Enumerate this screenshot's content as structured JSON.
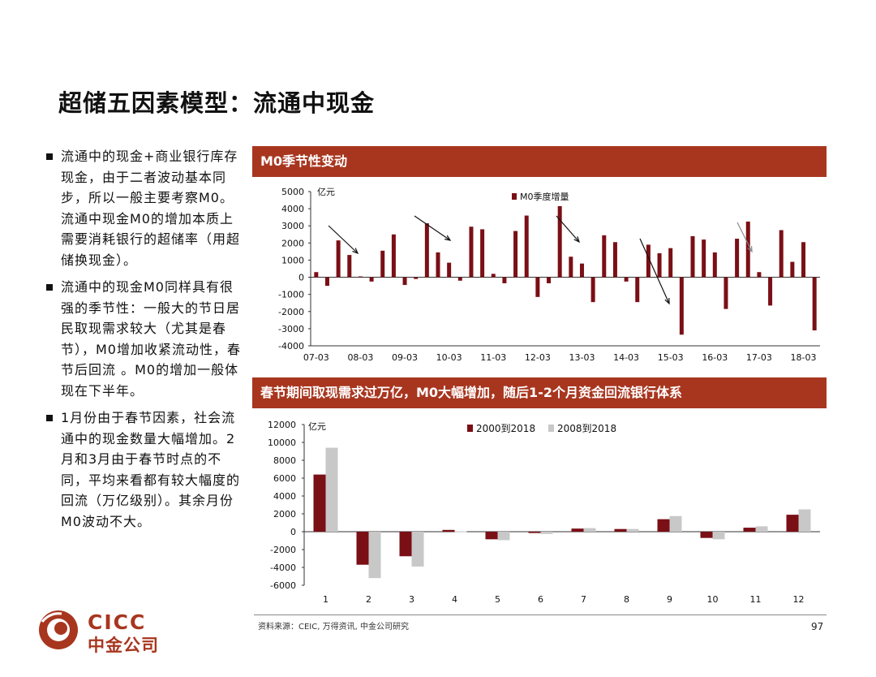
{
  "page": {
    "title": "超储五因素模型：流通中现金",
    "bullets": [
      "流通中的现金+商业银行库存现金，由于二者波动基本同步，所以一般主要考察M0。流通中现金M0的增加本质上需要消耗银行的超储率（用超储换现金）。",
      "流通中的现金M0同样具有很强的季节性：一般大的节日居民取现需求较大（尤其是春节），M0增加收紧流动性，春节后回流 。M0的增加一般体现在下半年。",
      "1月份由于春节因素，社会流通中的现金数量大幅增加。2月和3月由于春节时点的不同，平均来看都有较大幅度的回流（万亿级别）。其余月份M0波动不大。"
    ],
    "source": "资料来源：CEIC, 万得资讯, 中金公司研究",
    "page_number": "97",
    "logo": {
      "en": "CICC",
      "cn": "中金公司"
    }
  },
  "colors": {
    "header": "#a8361f",
    "series1": "#7a0f16",
    "series2": "#c8c8c8",
    "logo": "#a8361f"
  },
  "chart_data": [
    {
      "type": "bar",
      "title": "M0季节性变动",
      "unit": "亿元",
      "legend": "M0季度增量",
      "ylim": [
        -4000,
        5000
      ],
      "yticks": [
        5000,
        4000,
        3000,
        2000,
        1000,
        0,
        -1000,
        -2000,
        -3000,
        -4000
      ],
      "xticks": [
        "07-03",
        "08-03",
        "09-03",
        "10-03",
        "11-03",
        "12-03",
        "13-03",
        "14-03",
        "15-03",
        "16-03",
        "17-03",
        "18-03"
      ],
      "series": [
        {
          "name": "M0季度增量",
          "values": [
            300,
            -500,
            2150,
            1300,
            50,
            -250,
            1550,
            2500,
            -450,
            -100,
            3150,
            1450,
            850,
            -200,
            2950,
            2800,
            200,
            -350,
            2700,
            3600,
            -1150,
            -350,
            4150,
            1200,
            800,
            -1450,
            2450,
            2050,
            -250,
            -1450,
            1900,
            1400,
            1700,
            -3350,
            2400,
            2200,
            1450,
            -1850,
            2250,
            3250,
            300,
            -1650,
            2750,
            900,
            2050,
            -3100
          ]
        }
      ]
    },
    {
      "type": "bar",
      "title": "春节期间取现需求过万亿，M0大幅增加，随后1-2个月资金回流银行体系",
      "unit": "亿元",
      "ylim": [
        -6000,
        12000
      ],
      "yticks": [
        12000,
        10000,
        8000,
        6000,
        4000,
        2000,
        0,
        -2000,
        -4000,
        -6000
      ],
      "categories": [
        "1",
        "2",
        "3",
        "4",
        "5",
        "6",
        "7",
        "8",
        "9",
        "10",
        "11",
        "12"
      ],
      "series": [
        {
          "name": "2000到2018",
          "values": [
            6400,
            -3700,
            -2750,
            200,
            -850,
            -150,
            350,
            300,
            1400,
            -700,
            450,
            1900
          ]
        },
        {
          "name": "2008到2018",
          "values": [
            9400,
            -5200,
            -3900,
            50,
            -950,
            -250,
            400,
            300,
            1750,
            -850,
            600,
            2500
          ]
        }
      ]
    }
  ]
}
